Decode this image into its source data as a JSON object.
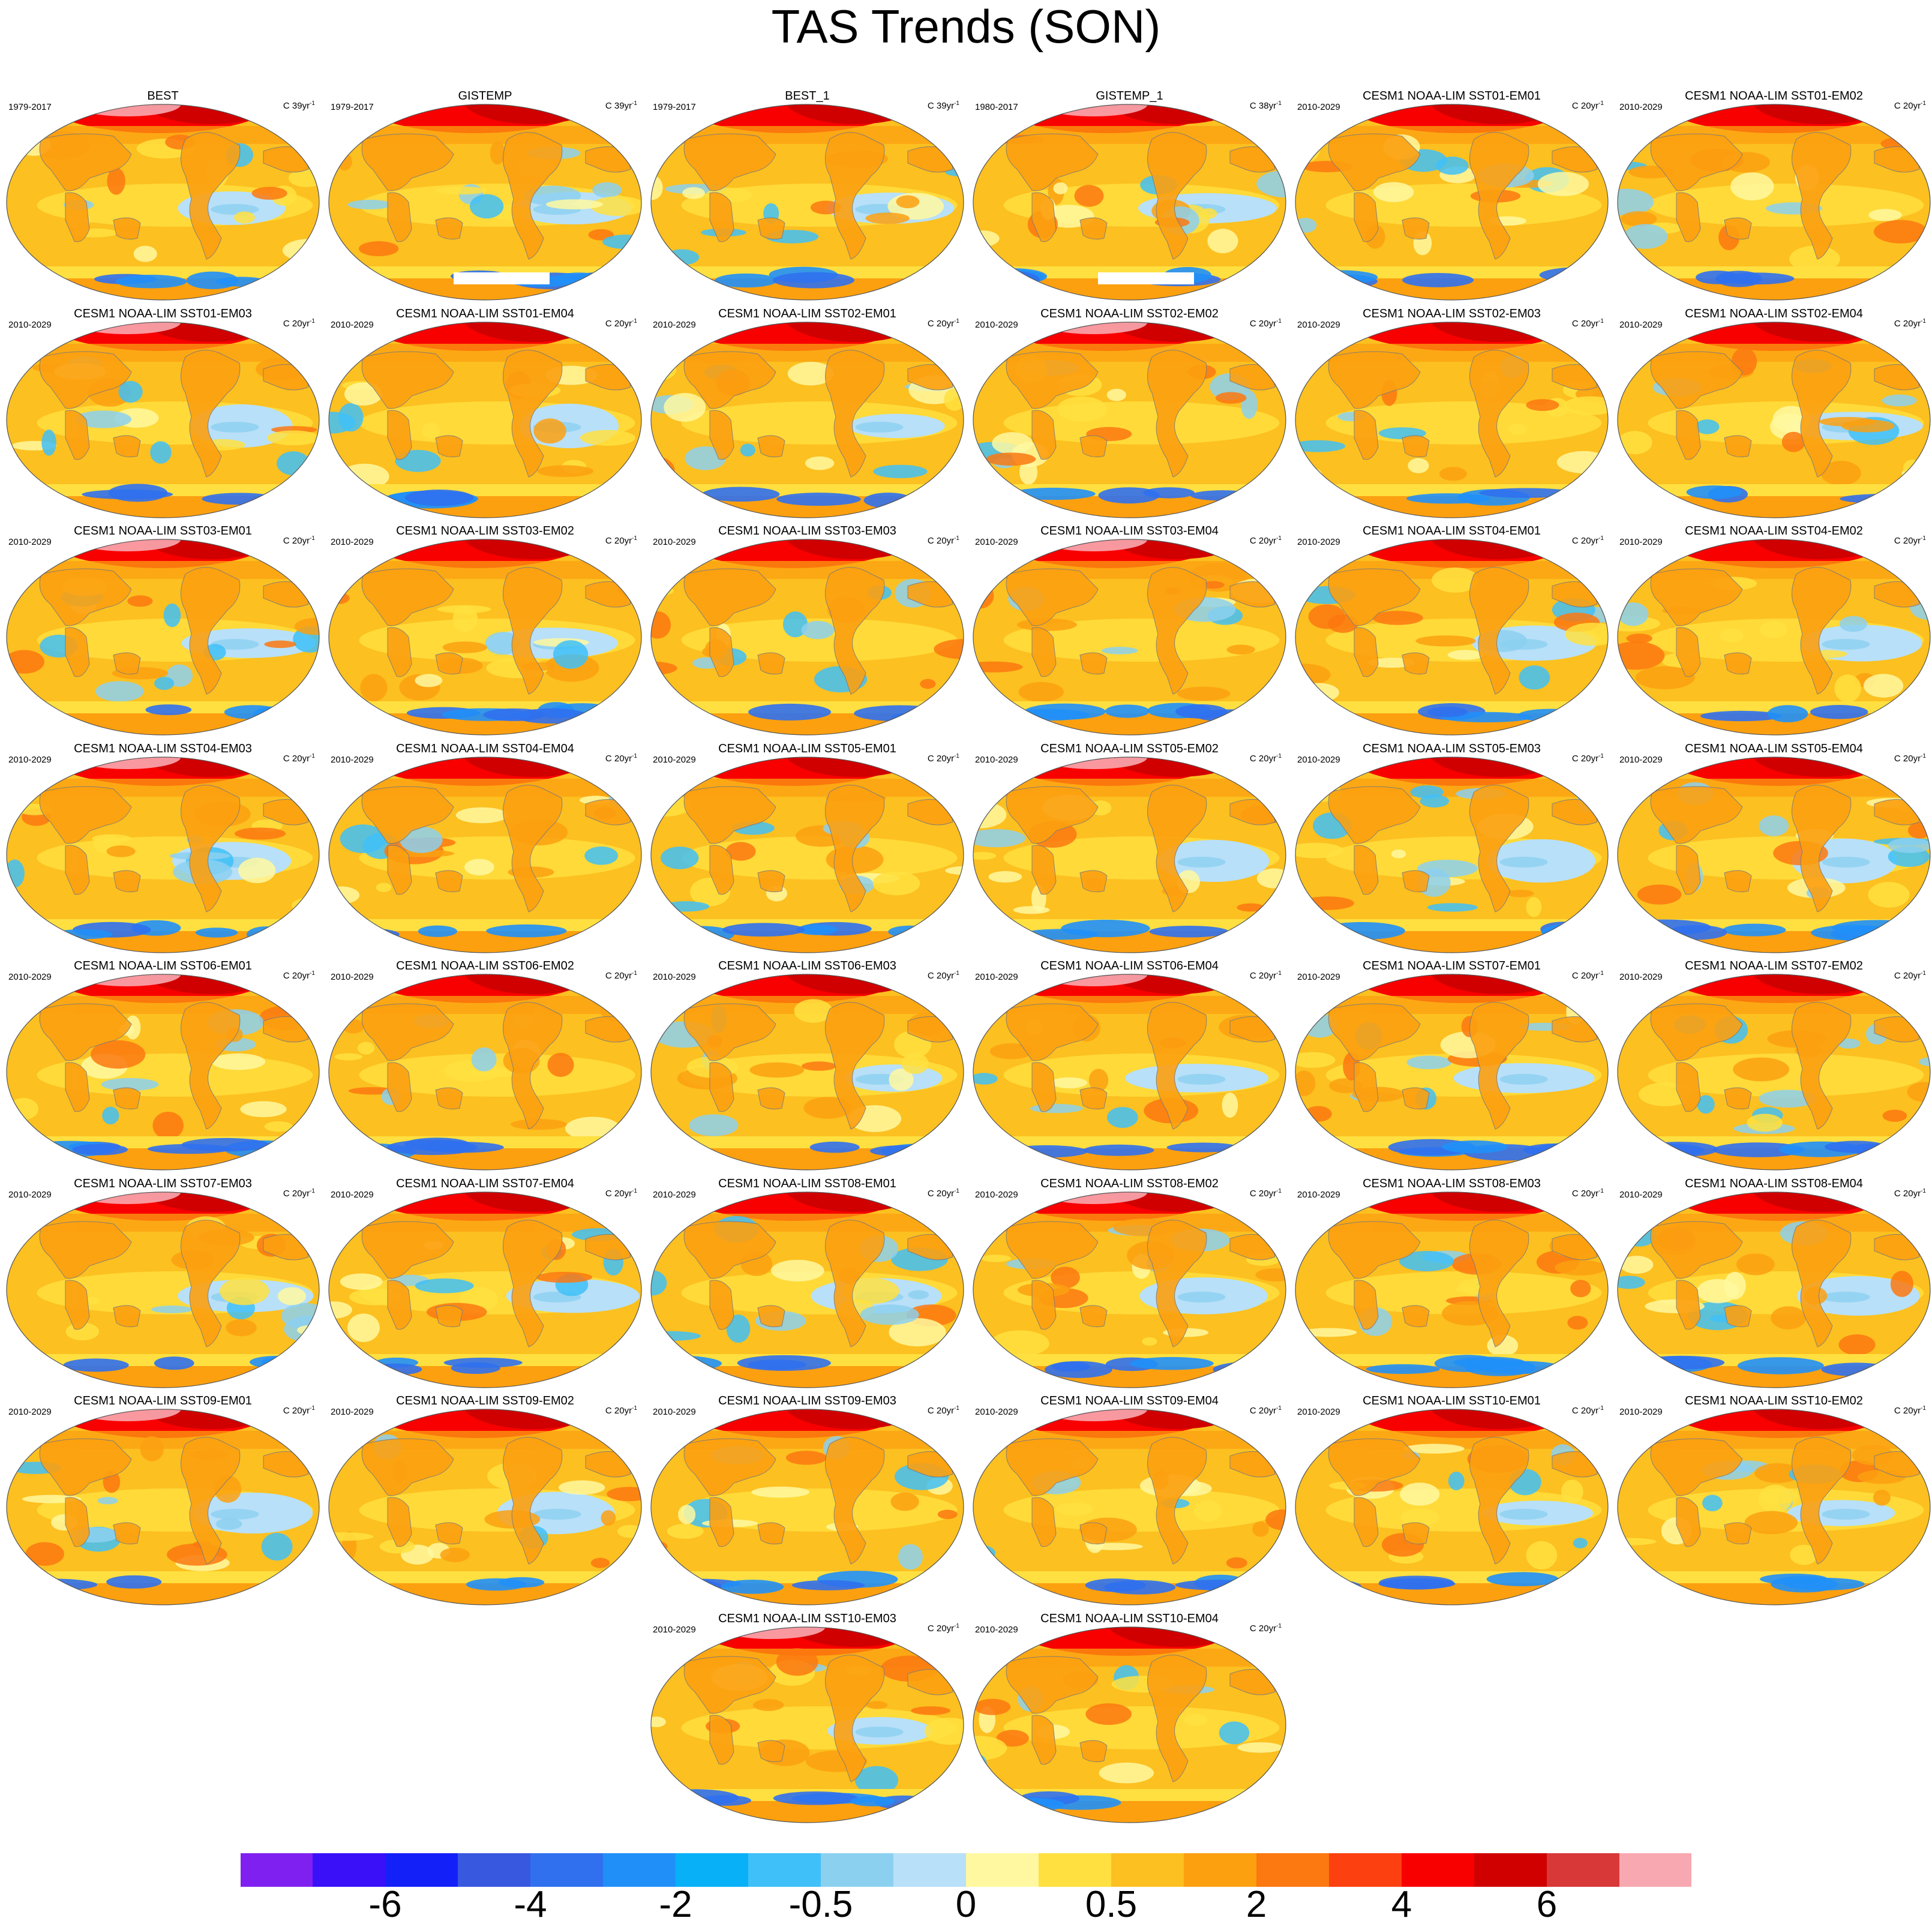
{
  "chart_data": {
    "type": "heatmap",
    "title": "TAS Trends (SON)",
    "projection": "robinson-like global map",
    "colorbar": {
      "orientation": "horizontal",
      "position": "bottom",
      "colors": [
        "#8020f0",
        "#3a10f8",
        "#1420f8",
        "#3858e0",
        "#3070ee",
        "#2090f8",
        "#08b0f8",
        "#40c0f8",
        "#8cd0f0",
        "#b8e0f8",
        "#fff8a0",
        "#ffe040",
        "#fcc020",
        "#fca010",
        "#fc7810",
        "#fc4010",
        "#f80000",
        "#d00000",
        "#d83838",
        "#f8a8b0"
      ],
      "tick_labels": [
        "-6",
        "-4",
        "-2",
        "-0.5",
        "0",
        "0.5",
        "2",
        "4",
        "6"
      ],
      "tick_boundary_index": [
        2,
        4,
        6,
        8,
        10,
        12,
        14,
        16,
        18
      ]
    },
    "panels": [
      {
        "title": "BEST",
        "period": "1979-2017",
        "units": "C 39yr",
        "units_exp": "-1"
      },
      {
        "title": "GISTEMP",
        "period": "1979-2017",
        "units": "C 39yr",
        "units_exp": "-1"
      },
      {
        "title": "BEST_1",
        "period": "1979-2017",
        "units": "C 39yr",
        "units_exp": "-1"
      },
      {
        "title": "GISTEMP_1",
        "period": "1980-2017",
        "units": "C 38yr",
        "units_exp": "-1"
      },
      {
        "title": "CESM1 NOAA-LIM SST01-EM01",
        "period": "2010-2029",
        "units": "C 20yr",
        "units_exp": "-1"
      },
      {
        "title": "CESM1 NOAA-LIM SST01-EM02",
        "period": "2010-2029",
        "units": "C 20yr",
        "units_exp": "-1"
      },
      {
        "title": "CESM1 NOAA-LIM SST01-EM03",
        "period": "2010-2029",
        "units": "C 20yr",
        "units_exp": "-1"
      },
      {
        "title": "CESM1 NOAA-LIM SST01-EM04",
        "period": "2010-2029",
        "units": "C 20yr",
        "units_exp": "-1"
      },
      {
        "title": "CESM1 NOAA-LIM SST02-EM01",
        "period": "2010-2029",
        "units": "C 20yr",
        "units_exp": "-1"
      },
      {
        "title": "CESM1 NOAA-LIM SST02-EM02",
        "period": "2010-2029",
        "units": "C 20yr",
        "units_exp": "-1"
      },
      {
        "title": "CESM1 NOAA-LIM SST02-EM03",
        "period": "2010-2029",
        "units": "C 20yr",
        "units_exp": "-1"
      },
      {
        "title": "CESM1 NOAA-LIM SST02-EM04",
        "period": "2010-2029",
        "units": "C 20yr",
        "units_exp": "-1"
      },
      {
        "title": "CESM1 NOAA-LIM SST03-EM01",
        "period": "2010-2029",
        "units": "C 20yr",
        "units_exp": "-1"
      },
      {
        "title": "CESM1 NOAA-LIM SST03-EM02",
        "period": "2010-2029",
        "units": "C 20yr",
        "units_exp": "-1"
      },
      {
        "title": "CESM1 NOAA-LIM SST03-EM03",
        "period": "2010-2029",
        "units": "C 20yr",
        "units_exp": "-1"
      },
      {
        "title": "CESM1 NOAA-LIM SST03-EM04",
        "period": "2010-2029",
        "units": "C 20yr",
        "units_exp": "-1"
      },
      {
        "title": "CESM1 NOAA-LIM SST04-EM01",
        "period": "2010-2029",
        "units": "C 20yr",
        "units_exp": "-1"
      },
      {
        "title": "CESM1 NOAA-LIM SST04-EM02",
        "period": "2010-2029",
        "units": "C 20yr",
        "units_exp": "-1"
      },
      {
        "title": "CESM1 NOAA-LIM SST04-EM03",
        "period": "2010-2029",
        "units": "C 20yr",
        "units_exp": "-1"
      },
      {
        "title": "CESM1 NOAA-LIM SST04-EM04",
        "period": "2010-2029",
        "units": "C 20yr",
        "units_exp": "-1"
      },
      {
        "title": "CESM1 NOAA-LIM SST05-EM01",
        "period": "2010-2029",
        "units": "C 20yr",
        "units_exp": "-1"
      },
      {
        "title": "CESM1 NOAA-LIM SST05-EM02",
        "period": "2010-2029",
        "units": "C 20yr",
        "units_exp": "-1"
      },
      {
        "title": "CESM1 NOAA-LIM SST05-EM03",
        "period": "2010-2029",
        "units": "C 20yr",
        "units_exp": "-1"
      },
      {
        "title": "CESM1 NOAA-LIM SST05-EM04",
        "period": "2010-2029",
        "units": "C 20yr",
        "units_exp": "-1"
      },
      {
        "title": "CESM1 NOAA-LIM SST06-EM01",
        "period": "2010-2029",
        "units": "C 20yr",
        "units_exp": "-1"
      },
      {
        "title": "CESM1 NOAA-LIM SST06-EM02",
        "period": "2010-2029",
        "units": "C 20yr",
        "units_exp": "-1"
      },
      {
        "title": "CESM1 NOAA-LIM SST06-EM03",
        "period": "2010-2029",
        "units": "C 20yr",
        "units_exp": "-1"
      },
      {
        "title": "CESM1 NOAA-LIM SST06-EM04",
        "period": "2010-2029",
        "units": "C 20yr",
        "units_exp": "-1"
      },
      {
        "title": "CESM1 NOAA-LIM SST07-EM01",
        "period": "2010-2029",
        "units": "C 20yr",
        "units_exp": "-1"
      },
      {
        "title": "CESM1 NOAA-LIM SST07-EM02",
        "period": "2010-2029",
        "units": "C 20yr",
        "units_exp": "-1"
      },
      {
        "title": "CESM1 NOAA-LIM SST07-EM03",
        "period": "2010-2029",
        "units": "C 20yr",
        "units_exp": "-1"
      },
      {
        "title": "CESM1 NOAA-LIM SST07-EM04",
        "period": "2010-2029",
        "units": "C 20yr",
        "units_exp": "-1"
      },
      {
        "title": "CESM1 NOAA-LIM SST08-EM01",
        "period": "2010-2029",
        "units": "C 20yr",
        "units_exp": "-1"
      },
      {
        "title": "CESM1 NOAA-LIM SST08-EM02",
        "period": "2010-2029",
        "units": "C 20yr",
        "units_exp": "-1"
      },
      {
        "title": "CESM1 NOAA-LIM SST08-EM03",
        "period": "2010-2029",
        "units": "C 20yr",
        "units_exp": "-1"
      },
      {
        "title": "CESM1 NOAA-LIM SST08-EM04",
        "period": "2010-2029",
        "units": "C 20yr",
        "units_exp": "-1"
      },
      {
        "title": "CESM1 NOAA-LIM SST09-EM01",
        "period": "2010-2029",
        "units": "C 20yr",
        "units_exp": "-1"
      },
      {
        "title": "CESM1 NOAA-LIM SST09-EM02",
        "period": "2010-2029",
        "units": "C 20yr",
        "units_exp": "-1"
      },
      {
        "title": "CESM1 NOAA-LIM SST09-EM03",
        "period": "2010-2029",
        "units": "C 20yr",
        "units_exp": "-1"
      },
      {
        "title": "CESM1 NOAA-LIM SST09-EM04",
        "period": "2010-2029",
        "units": "C 20yr",
        "units_exp": "-1"
      },
      {
        "title": "CESM1 NOAA-LIM SST10-EM01",
        "period": "2010-2029",
        "units": "C 20yr",
        "units_exp": "-1"
      },
      {
        "title": "CESM1 NOAA-LIM SST10-EM02",
        "period": "2010-2029",
        "units": "C 20yr",
        "units_exp": "-1"
      },
      {
        "title": "CESM1 NOAA-LIM SST10-EM03",
        "period": "2010-2029",
        "units": "C 20yr",
        "units_exp": "-1"
      },
      {
        "title": "CESM1 NOAA-LIM SST10-EM04",
        "period": "2010-2029",
        "units": "C 20yr",
        "units_exp": "-1"
      }
    ]
  }
}
